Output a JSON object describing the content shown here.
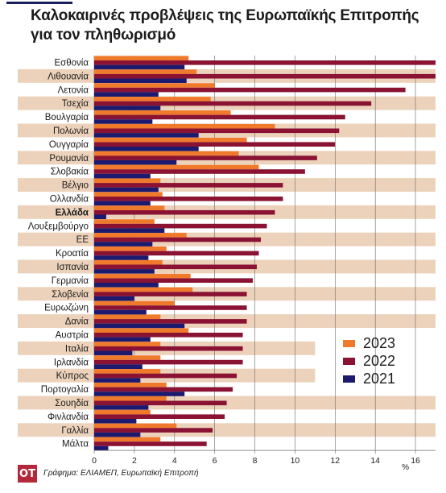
{
  "title": "Καλοκαιρινές προβλέψεις της Ευρωπαϊκής Επιτροπής για τον πληθωρισμό",
  "source": "Γράφημα: ΕΛΙΑΜΕΠ, Ευρωπαϊκή Επιτροπή",
  "logo_text": "OT",
  "colors": {
    "s2023": "#f07a2c",
    "s2022": "#8a1333",
    "s2021": "#1c1a6e",
    "band": "#ecd2bb",
    "background": "#ffffff",
    "grid": "#6a6a6a"
  },
  "chart_data": {
    "type": "bar",
    "orientation": "horizontal",
    "title": "Καλοκαιρινές προβλέψεις της Ευρωπαϊκής Επιτροπής για τον πληθωρισμό",
    "xlabel": "%",
    "xlim": [
      0,
      17
    ],
    "xticks": [
      0,
      2,
      4,
      6,
      8,
      10,
      12,
      14,
      16
    ],
    "grid": true,
    "legend_position": "bottom-right",
    "highlighted_category": "Ελλάδα",
    "categories": [
      "Εσθονία",
      "Λιθουανία",
      "Λετονία",
      "Τσεχία",
      "Βουλγαρία",
      "Πολωνία",
      "Ουγγαρία",
      "Ρουμανία",
      "Σλοβακία",
      "Βέλγιο",
      "Ολλανδία",
      "Ελλάδα",
      "Λουξεμβούργο",
      "ΕΕ",
      "Κροατία",
      "Ισπανία",
      "Γερμανία",
      "Σλοβενία",
      "Ευρωζώνη",
      "Δανία",
      "Αυστρία",
      "Ιταλία",
      "Ιρλανδία",
      "Κύπρος",
      "Πορτογαλία",
      "Σουηδία",
      "Φινλανδία",
      "Γαλλία",
      "Μάλτα"
    ],
    "series": [
      {
        "name": "2023",
        "values": [
          4.7,
          5.1,
          6.0,
          5.8,
          6.8,
          9.0,
          7.6,
          7.2,
          8.2,
          3.3,
          3.4,
          3.5,
          3.0,
          4.6,
          3.6,
          3.4,
          4.8,
          4.9,
          4.0,
          3.3,
          4.7,
          3.3,
          3.3,
          3.3,
          3.6,
          3.6,
          2.8,
          4.1,
          3.3
        ]
      },
      {
        "name": "2022",
        "values": [
          17.0,
          17.0,
          15.5,
          13.8,
          12.5,
          12.2,
          12.0,
          11.1,
          10.5,
          9.4,
          9.4,
          9.0,
          8.6,
          8.3,
          8.2,
          8.1,
          7.9,
          7.6,
          7.6,
          7.6,
          7.4,
          7.4,
          7.4,
          7.1,
          6.9,
          6.6,
          6.5,
          5.9,
          5.6
        ]
      },
      {
        "name": "2021",
        "values": [
          4.5,
          4.6,
          3.2,
          3.3,
          2.9,
          5.2,
          5.2,
          4.1,
          2.8,
          3.2,
          2.8,
          0.6,
          3.5,
          2.9,
          2.7,
          3.0,
          3.2,
          2.0,
          2.6,
          4.5,
          2.8,
          1.9,
          2.4,
          2.3,
          4.5,
          2.7,
          2.1,
          2.3,
          0.7
        ]
      }
    ]
  }
}
